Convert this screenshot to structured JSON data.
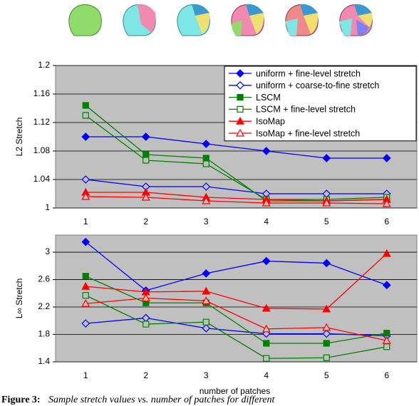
{
  "chart_data": [
    {
      "type": "line",
      "ylabel": "L2 Stretch",
      "categories": [
        "1",
        "2",
        "3",
        "4",
        "5",
        "6"
      ],
      "ylim": [
        1,
        1.2
      ],
      "yticks": [
        1,
        1.04,
        1.08,
        1.12,
        1.16,
        1.2
      ],
      "grid": true,
      "legend": "upper right",
      "series": [
        {
          "name": "uniform + fine-level stretch",
          "color": "#0000ff",
          "marker": "diamond",
          "filled": true,
          "values": [
            1.1,
            1.1,
            1.09,
            1.08,
            1.07,
            1.07
          ]
        },
        {
          "name": "uniform + coarse-to-fine stretch",
          "color": "#0000ff",
          "marker": "diamond",
          "filled": false,
          "values": [
            1.04,
            1.03,
            1.03,
            1.02,
            1.02,
            1.02
          ]
        },
        {
          "name": "LSCM",
          "color": "#008000",
          "marker": "square",
          "filled": true,
          "values": [
            1.144,
            1.075,
            1.07,
            1.01,
            1.01,
            1.012
          ]
        },
        {
          "name": "LSCM + fine-level stretch",
          "color": "#008000",
          "marker": "square",
          "filled": false,
          "values": [
            1.13,
            1.067,
            1.062,
            1.012,
            1.012,
            1.015
          ]
        },
        {
          "name": "IsoMap",
          "color": "#ff0000",
          "marker": "triangle",
          "filled": true,
          "values": [
            1.022,
            1.022,
            1.015,
            1.012,
            1.01,
            1.012
          ]
        },
        {
          "name": "IsoMap + fine-level stretch",
          "color": "#ff0000",
          "marker": "triangle",
          "filled": false,
          "values": [
            1.016,
            1.015,
            1.01,
            1.007,
            1.007,
            1.006
          ]
        }
      ]
    },
    {
      "type": "line",
      "ylabel": "L∞ Stretch",
      "xlabel": "number of patches",
      "categories": [
        "1",
        "2",
        "3",
        "4",
        "5",
        "6"
      ],
      "ylim": [
        1.4,
        3.25
      ],
      "yticks": [
        1.4,
        1.8,
        2.2,
        2.6,
        3
      ],
      "grid": true,
      "series": [
        {
          "color": "#0000ff",
          "marker": "diamond",
          "filled": true,
          "values": [
            3.15,
            2.44,
            2.69,
            2.87,
            2.84,
            2.52
          ]
        },
        {
          "color": "#0000ff",
          "marker": "diamond",
          "filled": false,
          "values": [
            1.96,
            2.04,
            1.89,
            1.81,
            1.81,
            1.78
          ]
        },
        {
          "color": "#008000",
          "marker": "square",
          "filled": true,
          "values": [
            2.65,
            2.26,
            2.26,
            1.67,
            1.67,
            1.82
          ]
        },
        {
          "color": "#008000",
          "marker": "square",
          "filled": false,
          "values": [
            2.37,
            1.95,
            1.98,
            1.45,
            1.46,
            1.62
          ]
        },
        {
          "color": "#ff0000",
          "marker": "triangle",
          "filled": true,
          "values": [
            2.5,
            2.42,
            2.43,
            2.18,
            2.17,
            2.98
          ]
        },
        {
          "color": "#ff0000",
          "marker": "triangle",
          "filled": false,
          "values": [
            2.25,
            2.33,
            2.29,
            1.88,
            1.9,
            1.71
          ]
        }
      ]
    }
  ],
  "caption": {
    "label": "Figure 3:",
    "text": "Sample stretch values vs. number of patches for different"
  }
}
